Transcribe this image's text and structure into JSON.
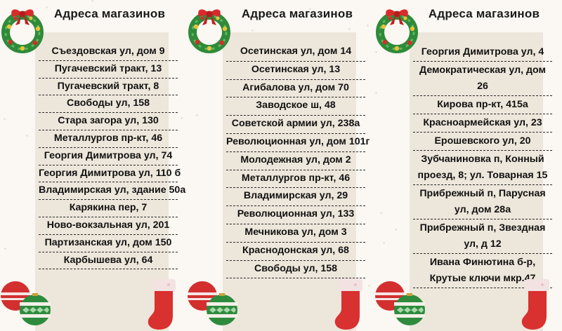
{
  "columns": [
    {
      "title": "Адреса магазинов",
      "items": [
        "Съездовская ул, дом 9",
        "Пугачевский тракт, 13",
        "Пугачевский тракт, 8",
        "Свободы ул, 158",
        "Стара загора ул, 130",
        "Металлургов пр-кт, 46",
        "Георгия Димитрова ул, 74",
        "Георгия Димитрова ул, 110 б",
        "Владимирская ул, здание 50а",
        "Карякина пер, 7",
        "Ново-вокзальная ул, 201",
        "Партизанская ул, дом 150",
        "Карбышева ул, 64"
      ]
    },
    {
      "title": "Адреса магазинов",
      "items": [
        "Осетинская ул, дом 14",
        "Осетинская ул, 13",
        "Агибалова ул, дом 70",
        "Заводское ш, 48",
        "Советской армии ул, 238а",
        "Революционная ул, дом 101г",
        "Молодежная ул, дом 2",
        "Металлургов пр-кт, 46",
        "Владимирская ул, 29",
        "Революционная ул, 133",
        "Мечникова ул, дом 3",
        "Краснодонская ул, 68",
        "Свободы ул, 158"
      ]
    },
    {
      "title": "Адреса магазинов",
      "items": [
        "Георгия Димитрова ул, 4",
        "Демократическая ул, дом 26",
        "Кирова пр-кт, 415а",
        "Красноармейская ул, 23",
        "Ерошевского ул, 20",
        "Зубчаниновка п, Конный проезд, 8; ул. Товарная 15",
        "Прибрежный п, Парусная ул, дом 28а",
        "Прибрежный п, Звездная ул, д 12",
        "Ивана Финютина б-р, Крутые ключи мкр.47"
      ]
    }
  ],
  "icons": {
    "wreath": "wreath-icon",
    "ornament": "ornament-icon",
    "stocking": "stocking-icon"
  },
  "colors": {
    "background": "#fbf8f3",
    "panel": "#ede6db",
    "wreath_green": "#2f8a3a",
    "bow_red": "#d92b2b",
    "ornament_red": "#d32f2f",
    "ornament_green": "#2e8b3e",
    "stocking_red": "#d93030",
    "stocking_cuff": "#f3e2e2"
  }
}
